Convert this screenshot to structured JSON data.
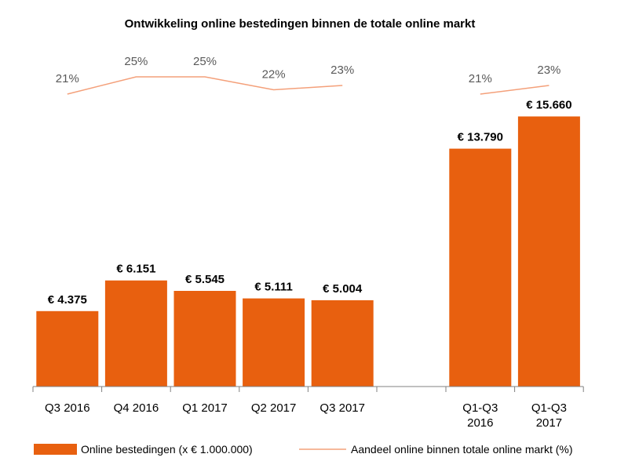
{
  "chart_data": {
    "type": "bar",
    "title": "Ontwikkeling online bestedingen binnen de totale online markt",
    "categories": [
      [
        "Q3 2016"
      ],
      [
        "Q4 2016"
      ],
      [
        "Q1 2017"
      ],
      [
        "Q2 2017"
      ],
      [
        "Q3 2017"
      ],
      [
        "Q1-Q3",
        "2016"
      ],
      [
        "Q1-Q3",
        "2017"
      ]
    ],
    "series": [
      {
        "name": "Online bestedingen (x € 1.000.000)",
        "kind": "bar",
        "color": "#E8600F",
        "values": [
          4375,
          6151,
          5545,
          5111,
          5004,
          13790,
          15660
        ],
        "labels": [
          "€ 4.375",
          "€ 6.151",
          "€ 5.545",
          "€ 5.111",
          "€ 5.004",
          "€ 13.790",
          "€ 15.660"
        ]
      },
      {
        "name": "Aandeel online binnen totale online markt (%)",
        "kind": "line",
        "color": "#F4A07A",
        "values": [
          21,
          25,
          25,
          22,
          23,
          21,
          23
        ],
        "labels": [
          "21%",
          "25%",
          "25%",
          "22%",
          "23%",
          "21%",
          "23%"
        ]
      }
    ],
    "ylim": [
      0,
      16500
    ],
    "gap_after_index": 4,
    "grid": false,
    "legend_position": "bottom"
  }
}
